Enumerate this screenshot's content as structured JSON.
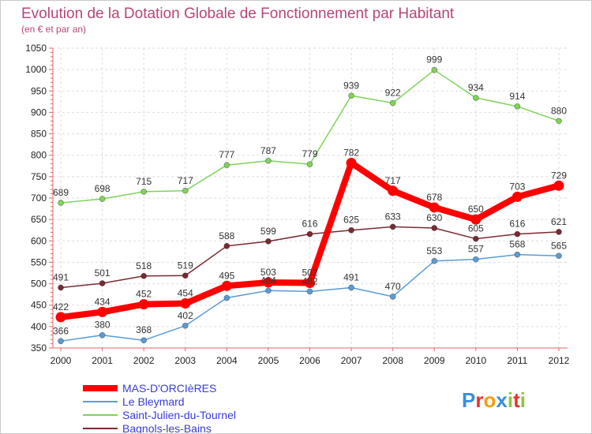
{
  "chart_data": {
    "type": "line",
    "title": "Evolution de la Dotation Globale de Fonctionnement par Habitant",
    "subtitle": "(en € et par an)",
    "xlabel": "",
    "ylabel": "",
    "x": [
      "2000",
      "2001",
      "2002",
      "2003",
      "2004",
      "2005",
      "2006",
      "2007",
      "2008",
      "2009",
      "2010",
      "2011",
      "2012"
    ],
    "ylim": [
      350,
      1050
    ],
    "yticks": [
      "350",
      "400",
      "450",
      "500",
      "550",
      "600",
      "650",
      "700",
      "750",
      "800",
      "850",
      "900",
      "950",
      "1000",
      "1050"
    ],
    "grid": true,
    "legend_position": "bottom-left",
    "series": [
      {
        "name": "MAS-D'ORCIèRES",
        "color": "#ff0000",
        "values": [
          422,
          434,
          452,
          454,
          495,
          503,
          502,
          782,
          717,
          678,
          650,
          703,
          729
        ]
      },
      {
        "name": "Le Bleymard",
        "color": "#5b9bd5",
        "values": [
          366,
          380,
          368,
          402,
          467,
          484,
          482,
          491,
          470,
          553,
          557,
          568,
          565
        ]
      },
      {
        "name": "Saint-Julien-du-Tournel",
        "color": "#7fd35a",
        "values": [
          689,
          698,
          715,
          717,
          777,
          787,
          779,
          939,
          922,
          999,
          934,
          914,
          880
        ]
      },
      {
        "name": "Bagnols-les-Bains",
        "color": "#7a2a32",
        "values": [
          491,
          501,
          518,
          519,
          588,
          599,
          616,
          625,
          633,
          630,
          605,
          616,
          621
        ]
      }
    ],
    "data_labels": [
      [
        "422",
        "434",
        "452",
        "454",
        "495",
        "503",
        "502",
        "782",
        "717",
        "678",
        "650",
        "703",
        "729"
      ],
      [
        "366",
        "380",
        "368",
        "402",
        "",
        "484",
        "482",
        "491",
        "470",
        "553",
        "557",
        "568",
        "565"
      ],
      [
        "689",
        "698",
        "715",
        "717",
        "777",
        "787",
        "779",
        "939",
        "922",
        "999",
        "934",
        "914",
        "880"
      ],
      [
        "491",
        "501",
        "518",
        "519",
        "588",
        "599",
        "616",
        "625",
        "633",
        "630",
        "605",
        "616",
        "621"
      ]
    ]
  },
  "logo": {
    "text": "Proxiti",
    "letters": [
      "P",
      "r",
      "o",
      "x",
      "i",
      "t",
      "i"
    ],
    "colors": [
      "#3a8fd8",
      "#e6332a",
      "#f39c12",
      "#3a8fd8",
      "#8dc63f",
      "#e6332a",
      "#8dc63f"
    ]
  }
}
